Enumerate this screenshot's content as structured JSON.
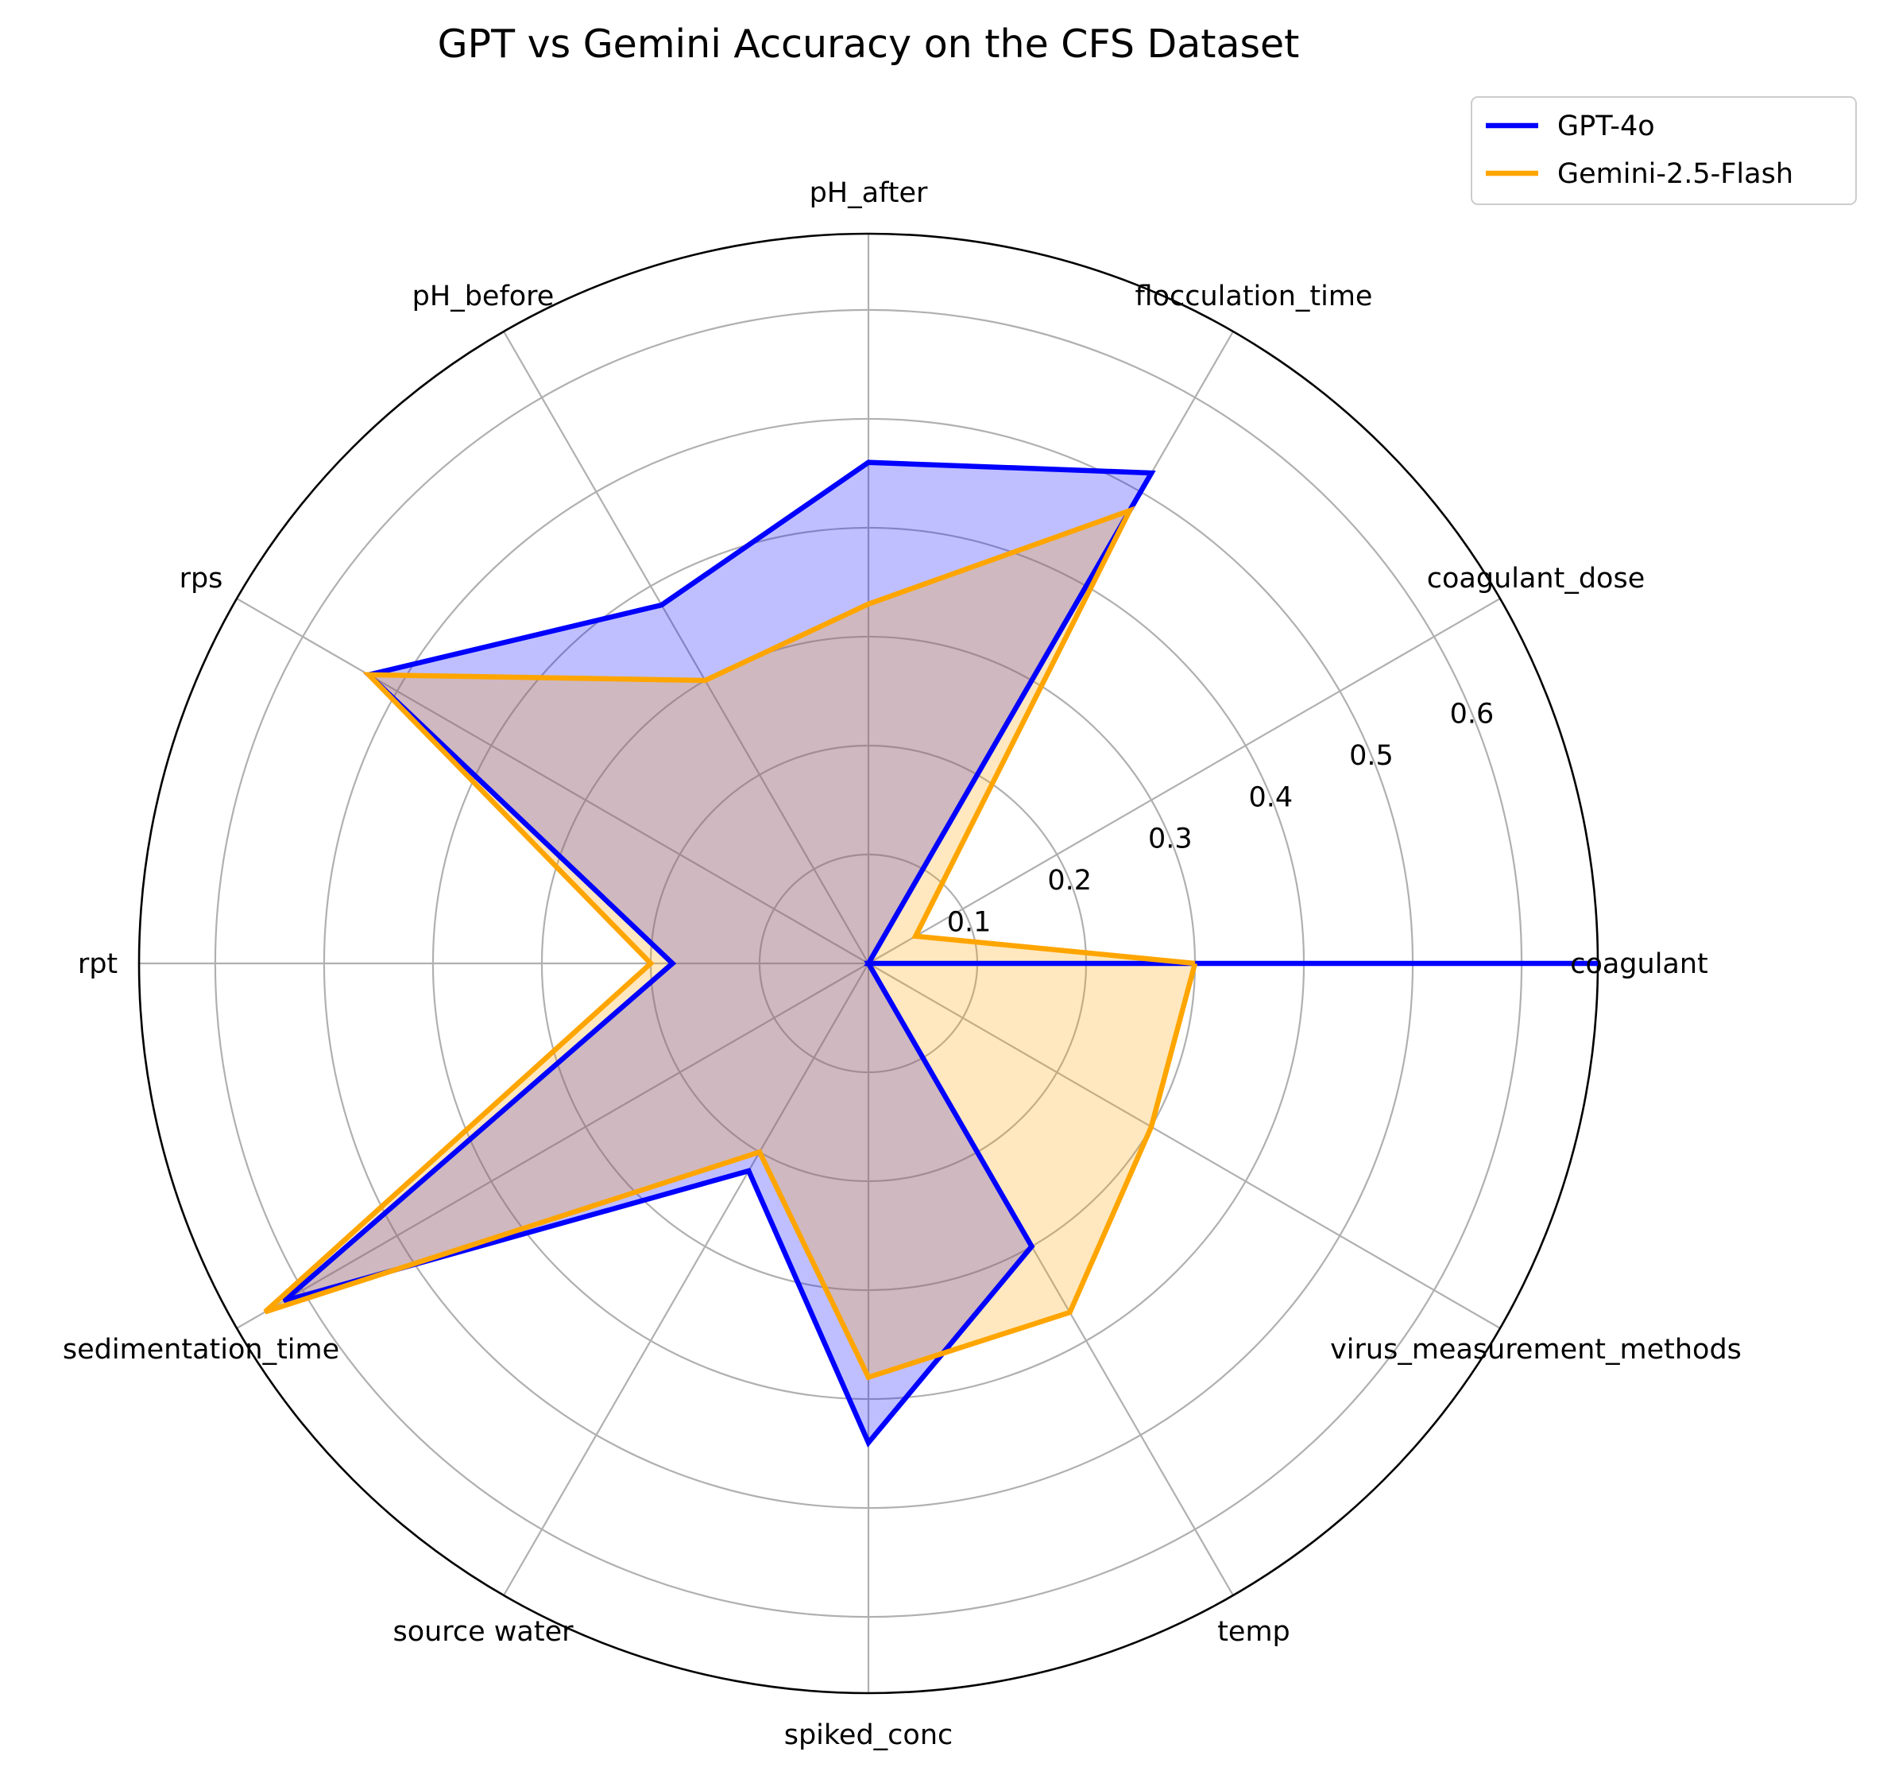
{
  "chart_data": {
    "type": "radar",
    "title": "GPT vs Gemini Accuracy on the CFS Dataset",
    "categories": [
      "coagulant",
      "coagulant_dose",
      "flocculation_time",
      "pH_after",
      "pH_before",
      "rps",
      "rpt",
      "sedimentation_time",
      "source water",
      "spiked_conc",
      "temp",
      "virus_measurement_methods"
    ],
    "series": [
      {
        "name": "GPT-4o",
        "color": "#0000ff",
        "values": [
          0.67,
          0.0,
          0.52,
          0.46,
          0.38,
          0.53,
          0.18,
          0.62,
          0.22,
          0.44,
          0.3,
          0.0
        ]
      },
      {
        "name": "Gemini-2.5-Flash",
        "color": "#ffa500",
        "values": [
          0.3,
          0.05,
          0.48,
          0.33,
          0.3,
          0.53,
          0.2,
          0.64,
          0.2,
          0.38,
          0.37,
          0.3
        ]
      }
    ],
    "r_ticks": [
      "0.1",
      "0.2",
      "0.3",
      "0.4",
      "0.5",
      "0.6"
    ],
    "r_max": 0.67,
    "grid": true,
    "legend_position": "top-right"
  }
}
